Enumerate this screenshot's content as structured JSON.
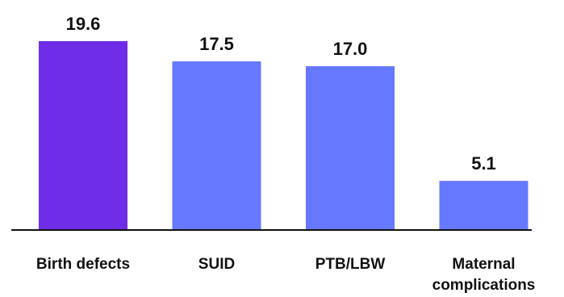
{
  "chart_data": {
    "type": "bar",
    "title": "",
    "xlabel": "",
    "ylabel": "",
    "ylim": [
      0,
      19.6
    ],
    "grid": false,
    "legend": "none",
    "categories": [
      "Birth defects",
      "SUID",
      "PTB/LBW",
      "Maternal complications"
    ],
    "category_lines": [
      [
        "Birth defects"
      ],
      [
        "SUID"
      ],
      [
        "PTB/LBW"
      ],
      [
        "Maternal",
        "complications"
      ]
    ],
    "values": [
      19.6,
      17.5,
      17.0,
      5.1
    ],
    "value_labels": [
      "19.6",
      "17.5",
      "17.0",
      "5.1"
    ],
    "colors": [
      "#6f2de8",
      "#6578ff",
      "#6578ff",
      "#6578ff"
    ]
  }
}
